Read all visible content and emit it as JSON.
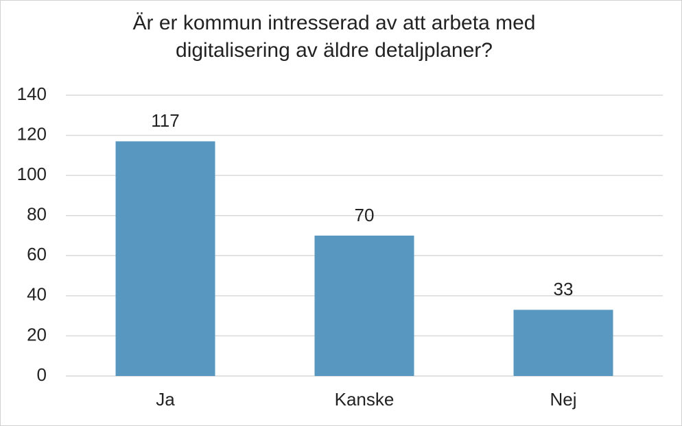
{
  "chart_data": {
    "type": "bar",
    "title": "Är er kommun intresserad av att arbeta med digitalisering av äldre detaljplaner?",
    "categories": [
      "Ja",
      "Kanske",
      "Nej"
    ],
    "values": [
      117,
      70,
      33
    ],
    "color": "#5797c0",
    "ylim": [
      0,
      140
    ],
    "yticks": [
      0,
      20,
      40,
      60,
      80,
      100,
      120,
      140
    ],
    "grid": true
  }
}
